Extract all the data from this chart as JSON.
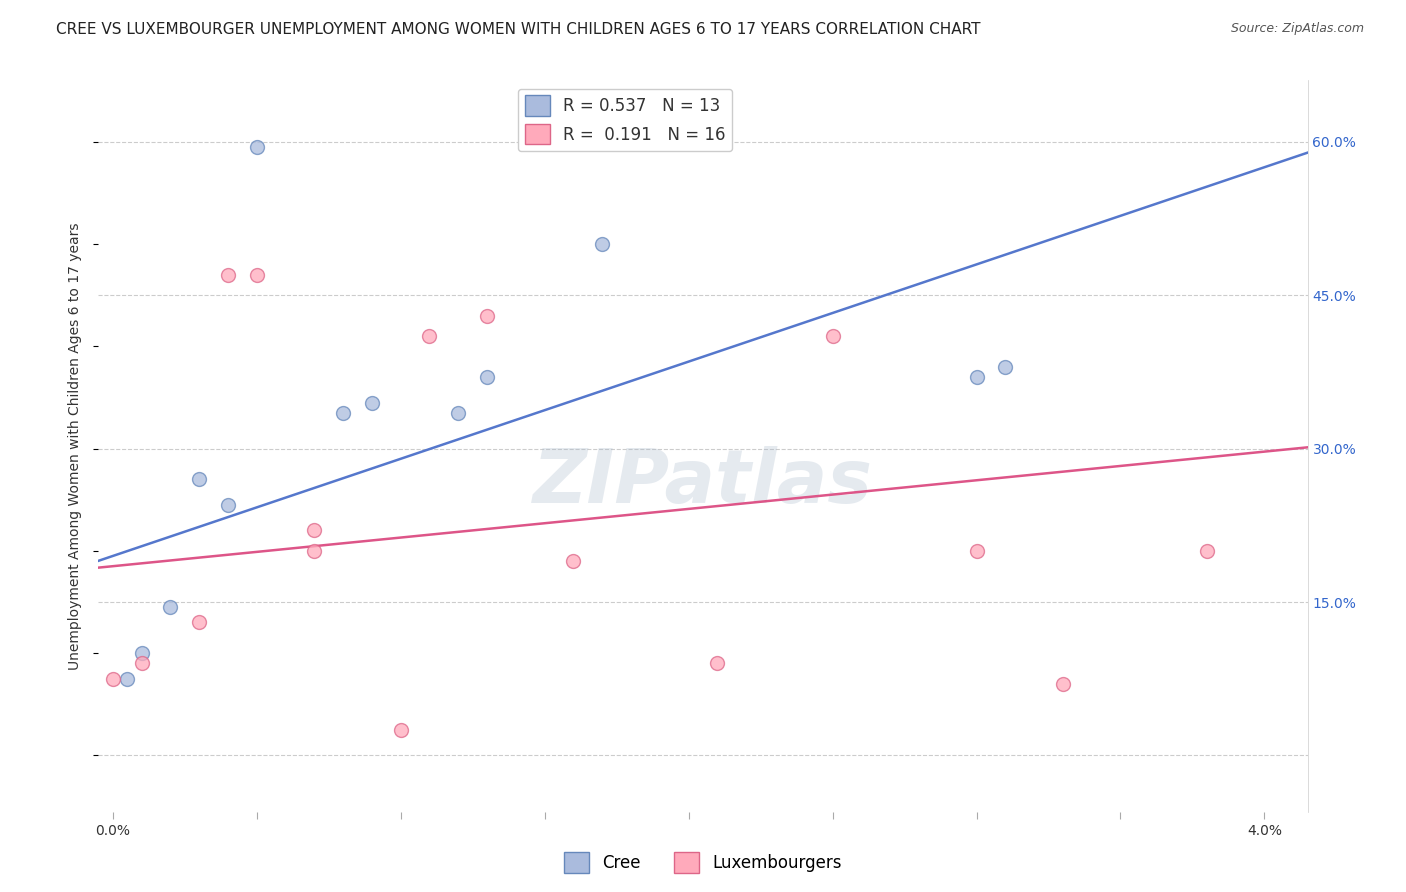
{
  "title": "CREE VS LUXEMBOURGER UNEMPLOYMENT AMONG WOMEN WITH CHILDREN AGES 6 TO 17 YEARS CORRELATION CHART",
  "source": "Source: ZipAtlas.com",
  "ylabel": "Unemployment Among Women with Children Ages 6 to 17 years",
  "cree_color": "#aabbdd",
  "luxembourger_color": "#ffaabb",
  "cree_edge_color": "#6688bb",
  "luxembourger_edge_color": "#dd6688",
  "cree_line_color": "#5577cc",
  "luxembourger_line_color": "#dd5588",
  "background_color": "#ffffff",
  "grid_color": "#cccccc",
  "cree_R": 0.537,
  "cree_N": 13,
  "luxembourger_R": 0.191,
  "luxembourger_N": 16,
  "cree_x": [
    0.0005,
    0.001,
    0.002,
    0.003,
    0.004,
    0.005,
    0.008,
    0.009,
    0.012,
    0.013,
    0.017,
    0.03,
    0.031
  ],
  "cree_y": [
    0.075,
    0.1,
    0.145,
    0.27,
    0.245,
    0.595,
    0.335,
    0.345,
    0.335,
    0.37,
    0.5,
    0.37,
    0.38
  ],
  "luxembourger_x": [
    0.0,
    0.001,
    0.003,
    0.004,
    0.005,
    0.007,
    0.007,
    0.01,
    0.011,
    0.013,
    0.016,
    0.021,
    0.025,
    0.03,
    0.033,
    0.038
  ],
  "luxembourger_y": [
    0.075,
    0.09,
    0.13,
    0.47,
    0.47,
    0.2,
    0.22,
    0.025,
    0.41,
    0.43,
    0.19,
    0.09,
    0.41,
    0.2,
    0.07,
    0.2
  ],
  "cree_line_intercept": 0.195,
  "cree_line_slope": 9.5,
  "lux_line_intercept": 0.185,
  "lux_line_slope": 2.8,
  "x_min": -0.0005,
  "x_max": 0.0415,
  "y_min": -0.055,
  "y_max": 0.66,
  "x_ticks": [
    0.0,
    0.005,
    0.01,
    0.015,
    0.02,
    0.025,
    0.03,
    0.035,
    0.04
  ],
  "y_ticks": [
    0.0,
    0.15,
    0.3,
    0.45,
    0.6
  ],
  "y_tick_labels": [
    "",
    "15.0%",
    "30.0%",
    "45.0%",
    "60.0%"
  ],
  "watermark": "ZIPatlas",
  "marker_size": 100,
  "title_fontsize": 11,
  "label_fontsize": 10,
  "tick_fontsize": 10,
  "legend_fontsize": 12,
  "source_fontsize": 9
}
